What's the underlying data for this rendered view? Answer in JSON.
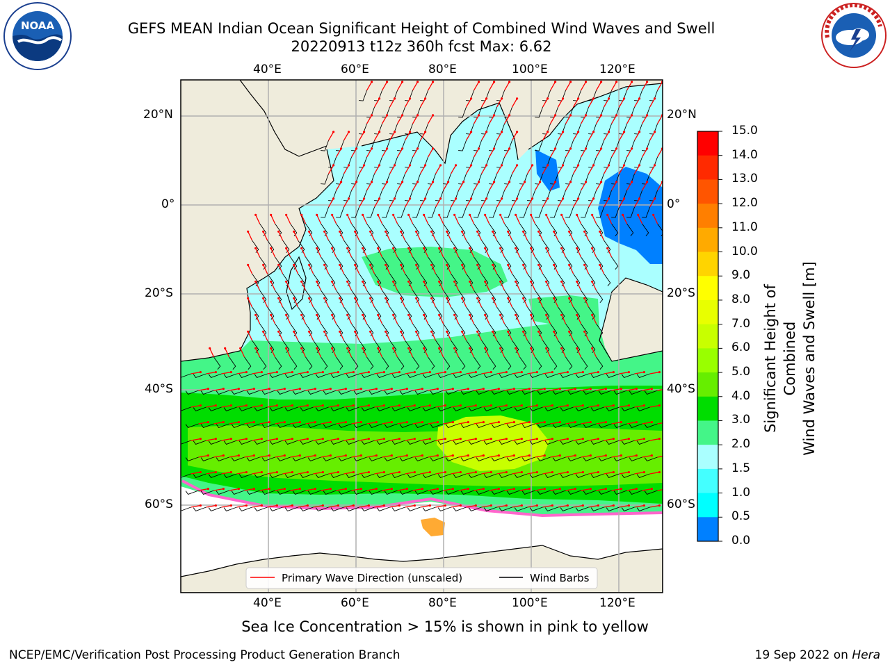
{
  "header": {
    "title_line1": "GEFS MEAN Indian Ocean Significant Height of Combined Wind Waves and Swell",
    "title_line2": "20220913 t12z 360h fcst   Max: 6.62"
  },
  "logos": {
    "noaa": {
      "text": "NOAA",
      "ring_text": "NATIONAL OCEANIC AND ATMOSPHERIC ADMINISTRATION · U.S. DEPARTMENT OF COMMERCE"
    },
    "nws": {
      "ring_text": "NATIONAL WEATHER SERVICE"
    }
  },
  "map": {
    "lon_ticks": [
      "40°E",
      "60°E",
      "80°E",
      "100°E",
      "120°E"
    ],
    "lat_ticks_left": [
      "20°N",
      "0°",
      "20°S",
      "40°S",
      "60°S"
    ],
    "lat_ticks_right": [
      "20°N",
      "0°",
      "20°S",
      "40°S",
      "60°S"
    ],
    "lon_range": [
      20,
      130
    ],
    "lat_range": [
      -75,
      27
    ],
    "legend": {
      "wave_label": "Primary Wave Direction (unscaled)",
      "barb_label": "Wind Barbs"
    },
    "colors": {
      "land": "#efecdc",
      "ice_region": "#ffffff",
      "grid": "#b0b0b0",
      "wave_arrow": "#ff0000",
      "barb": "#000000"
    }
  },
  "colorbar": {
    "label_line1": "Significant Height of Combined",
    "label_line2": "Wind Waves and Swell [m]",
    "ticks": [
      "15.0",
      "14.0",
      "13.0",
      "12.0",
      "11.0",
      "10.0",
      "9.0",
      "8.0",
      "7.0",
      "6.0",
      "5.0",
      "4.0",
      "3.0",
      "2.0",
      "1.5",
      "1.0",
      "0.5",
      "0.0"
    ],
    "colors_top_to_bottom": [
      "#ff0000",
      "#ff2a00",
      "#ff5500",
      "#ff7f00",
      "#ffaa00",
      "#ffd400",
      "#ffff00",
      "#e8ff00",
      "#c8ff00",
      "#99ff00",
      "#66ee00",
      "#00dd00",
      "#44f588",
      "#aaffff",
      "#44ffff",
      "#00ffff",
      "#0080ff",
      "#0000ff"
    ]
  },
  "footer": {
    "note": "Sea Ice Concentration > 15% is shown in pink to yellow",
    "credit": "NCEP/EMC/Verification Post Processing Product Generation Branch",
    "date_prefix": "19 Sep 2022 on ",
    "host": "Hera"
  }
}
